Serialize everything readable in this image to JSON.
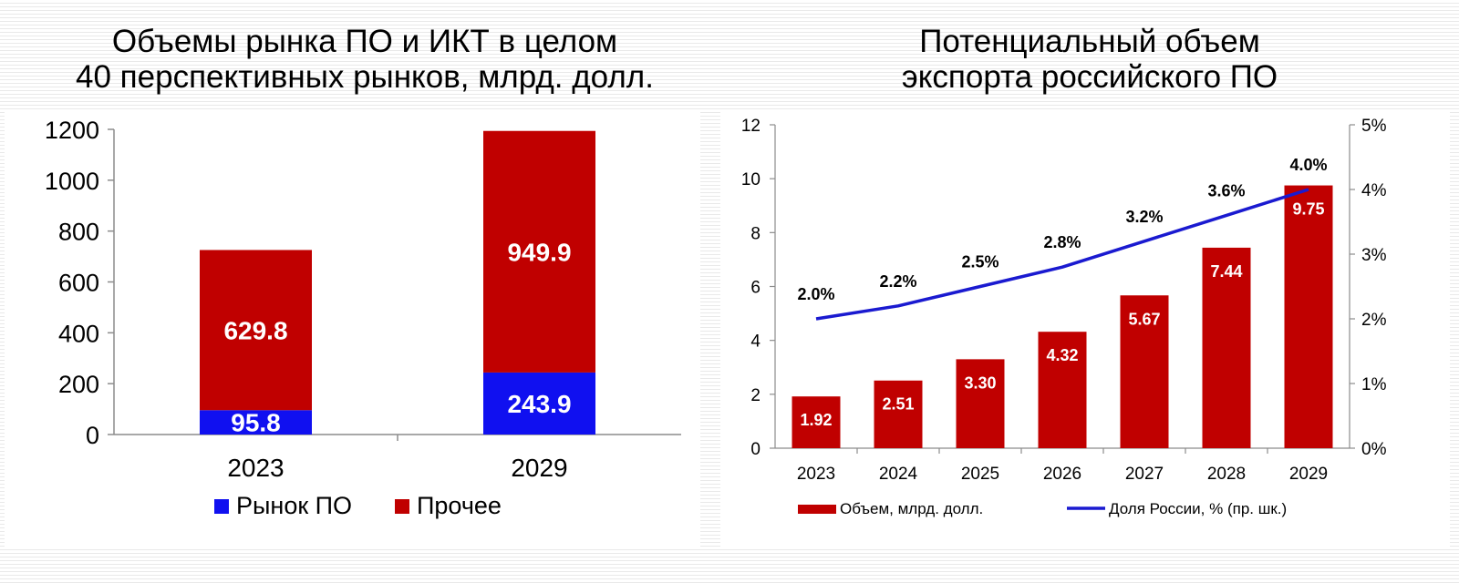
{
  "chart_data": [
    {
      "type": "bar",
      "stacked": true,
      "title": [
        "Объемы рынка ПО и ИКТ в целом",
        "40 перспективных рынков, млрд. долл."
      ],
      "categories": [
        "2023",
        "2029"
      ],
      "series": [
        {
          "name": "Рынок ПО",
          "values": [
            95.8,
            243.9
          ],
          "labels": [
            "95.8",
            "243.9"
          ],
          "color": "#1010f0"
        },
        {
          "name": "Прочее",
          "values": [
            629.8,
            949.9
          ],
          "labels": [
            "629.8",
            "949.9"
          ],
          "color": "#c00000"
        }
      ],
      "ylim": [
        0,
        1200
      ],
      "yticks": [
        0,
        200,
        400,
        600,
        800,
        1000,
        1200
      ],
      "grid": false,
      "legend": "bottom"
    },
    {
      "type": "bar+line",
      "title": [
        "Потенциальный объем",
        "экспорта российского ПО"
      ],
      "categories": [
        "2023",
        "2024",
        "2025",
        "2026",
        "2027",
        "2028",
        "2029"
      ],
      "series": [
        {
          "name": "Объем, млрд. долл.",
          "type": "bar",
          "axis": "left",
          "values": [
            1.92,
            2.51,
            3.3,
            4.32,
            5.67,
            7.44,
            9.75
          ],
          "labels": [
            "1.92",
            "2.51",
            "3.30",
            "4.32",
            "5.67",
            "7.44",
            "9.75"
          ],
          "color": "#c00000"
        },
        {
          "name": "Доля России, % (пр. шк.)",
          "type": "line",
          "axis": "right",
          "values": [
            2.0,
            2.2,
            2.5,
            2.8,
            3.2,
            3.6,
            4.0
          ],
          "labels": [
            "2.0%",
            "2.2%",
            "2.5%",
            "2.8%",
            "3.2%",
            "3.6%",
            "4.0%"
          ],
          "color": "#1a1ad0"
        }
      ],
      "ylim": [
        0,
        12
      ],
      "yticks": [
        0,
        2,
        4,
        6,
        8,
        10,
        12
      ],
      "y2lim": [
        0,
        5
      ],
      "y2ticks": [
        "0%",
        "1%",
        "2%",
        "3%",
        "4%",
        "5%"
      ],
      "grid": false,
      "legend": "bottom"
    }
  ]
}
